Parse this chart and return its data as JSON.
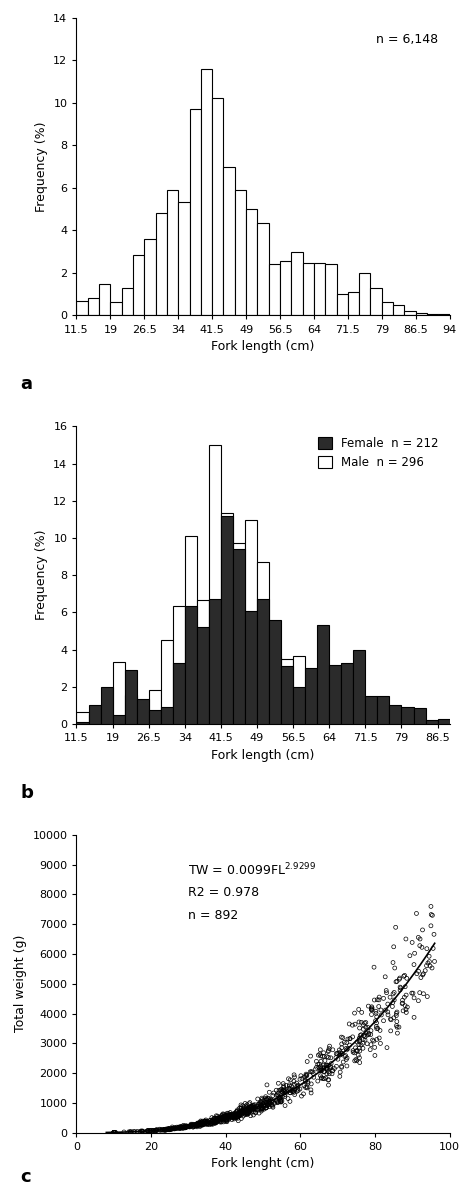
{
  "panel_a": {
    "note": "n = 6,148",
    "bin_edges": [
      11.5,
      14,
      16.5,
      19,
      21.5,
      24,
      26.5,
      29,
      31.5,
      34,
      36.5,
      39,
      41.5,
      44,
      46.5,
      49,
      51.5,
      54,
      56.5,
      59,
      61.5,
      64,
      66.5,
      69,
      71.5,
      74,
      76.5,
      79,
      81.5,
      84,
      86.5,
      89,
      91.5,
      94
    ],
    "frequencies": [
      0.7,
      0.8,
      1.5,
      0.65,
      1.3,
      2.85,
      3.6,
      4.8,
      5.9,
      5.35,
      9.7,
      11.6,
      10.25,
      7.0,
      5.9,
      5.0,
      4.35,
      2.4,
      2.55,
      3.0,
      2.45,
      2.45,
      2.4,
      1.0,
      1.1,
      2.0,
      1.3,
      0.65,
      0.5,
      0.2,
      0.1,
      0.05,
      0.05
    ],
    "xlabel": "Fork length (cm)",
    "ylabel": "Frequency (%)",
    "ylim": [
      0,
      14
    ],
    "yticks": [
      0,
      2,
      4,
      6,
      8,
      10,
      12,
      14
    ],
    "xtick_labels": [
      "11.5",
      "19",
      "26.5",
      "34",
      "41.5",
      "49",
      "56.5",
      "64",
      "71.5",
      "79",
      "86.5",
      "94"
    ],
    "xtick_positions": [
      11.5,
      19,
      26.5,
      34,
      41.5,
      49,
      56.5,
      64,
      71.5,
      79,
      86.5,
      94
    ],
    "label": "a"
  },
  "panel_b": {
    "note_female": "Female  n = 212",
    "note_male": "Male  n = 296",
    "bin_edges": [
      11.5,
      14,
      16.5,
      19,
      21.5,
      24,
      26.5,
      29,
      31.5,
      34,
      36.5,
      39,
      41.5,
      44,
      46.5,
      49,
      51.5,
      54,
      56.5,
      59,
      61.5,
      64,
      66.5,
      69,
      71.5,
      74,
      76.5,
      79,
      81.5,
      84,
      86.5,
      89.0
    ],
    "female_freq": [
      0.1,
      1.0,
      2.0,
      0.5,
      2.9,
      1.35,
      0.75,
      0.9,
      3.3,
      6.35,
      5.2,
      6.7,
      11.2,
      9.4,
      6.1,
      6.7,
      5.6,
      3.1,
      2.0,
      3.0,
      5.35,
      3.2,
      3.3,
      4.0,
      1.5,
      1.5,
      1.0,
      0.9,
      0.85,
      0.2,
      0.25
    ],
    "male_freq": [
      0.65,
      0.55,
      0.7,
      3.35,
      1.55,
      0.0,
      1.85,
      4.5,
      6.35,
      10.1,
      6.65,
      15.0,
      11.35,
      9.75,
      10.95,
      8.7,
      3.6,
      3.5,
      3.65,
      2.0,
      1.65,
      1.1,
      0.35,
      0.0,
      0.0,
      0.0,
      0.0,
      0.0,
      0.0,
      0.0,
      0.0
    ],
    "xlabel": "Fork length (cm)",
    "ylabel": "Frequency (%)",
    "ylim": [
      0,
      16
    ],
    "yticks": [
      0,
      2,
      4,
      6,
      8,
      10,
      12,
      14,
      16
    ],
    "xtick_labels": [
      "11.5",
      "19",
      "26.5",
      "34",
      "41.5",
      "49",
      "56.5",
      "64",
      "71.5",
      "79",
      "86.5"
    ],
    "xtick_positions": [
      11.5,
      19,
      26.5,
      34,
      41.5,
      49,
      56.5,
      64,
      71.5,
      79,
      86.5
    ],
    "label": "b"
  },
  "panel_c": {
    "a_param": 0.0099,
    "b_param": 2.9299,
    "xlabel": "Fork lenght (cm)",
    "ylabel": "Total weight (g)",
    "xlim": [
      0,
      100
    ],
    "ylim": [
      0,
      10000
    ],
    "yticks": [
      0,
      1000,
      2000,
      3000,
      4000,
      5000,
      6000,
      7000,
      8000,
      9000,
      10000
    ],
    "xticks": [
      0,
      20,
      40,
      60,
      80,
      100
    ],
    "label": "c"
  }
}
